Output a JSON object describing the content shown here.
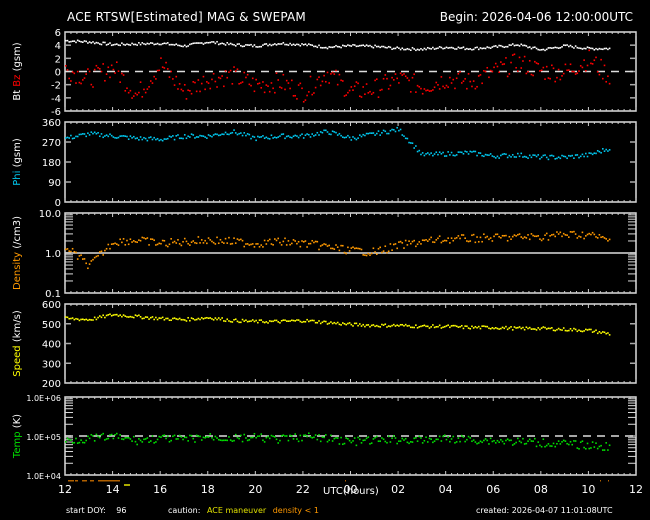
{
  "header": {
    "title": "ACE RTSW[Estimated] MAG & SWEPAM",
    "begin": "Begin: 2026-04-06 12:00:00UTC"
  },
  "footer": {
    "start_doy_label": "start DOY:",
    "start_doy_value": "96",
    "caution_label": "caution:",
    "caution_ace": "ACE maneuver",
    "caution_density": "density < 1",
    "created": "created: 2026-04-07 11:01:08UTC",
    "xlabel": "UTC(hours)"
  },
  "colors": {
    "bt": "#ffffff",
    "bz": "#ff0000",
    "phi": "#00c8f0",
    "density": "#ff9900",
    "speed": "#ffff00",
    "temp": "#00e000",
    "axis": "#ffffff",
    "ace_maneuver": "#cccc00",
    "density_lt1": "#ff9900"
  },
  "chart_data": [
    {
      "type": "scatter",
      "panel": "Bt/Bz",
      "ylabel": "Bt Bz (gsm)",
      "yticks": [
        "6",
        "4",
        "2",
        "0",
        "-2",
        "-4",
        "-6"
      ],
      "ylim": [
        -6,
        6
      ],
      "reference_line": 0,
      "series": [
        {
          "name": "Bt",
          "x": [
            12,
            13,
            14,
            15,
            16,
            17,
            18,
            19,
            20,
            21,
            22,
            23,
            24,
            25,
            26,
            27,
            28,
            29,
            30,
            31,
            32,
            33,
            34,
            35
          ],
          "values": [
            4.8,
            4.6,
            4.2,
            4.3,
            4.4,
            4.0,
            4.6,
            4.2,
            4.0,
            4.4,
            4.2,
            3.8,
            4.0,
            3.9,
            3.6,
            3.5,
            3.8,
            3.6,
            3.8,
            4.2,
            3.4,
            4.0,
            3.6,
            3.6
          ]
        },
        {
          "name": "Bz",
          "x": [
            12,
            13,
            14,
            15,
            16,
            17,
            18,
            19,
            20,
            21,
            22,
            23,
            24,
            25,
            26,
            27,
            28,
            29,
            30,
            31,
            32,
            33,
            34,
            35
          ],
          "values": [
            0.5,
            -1.0,
            0.8,
            -3.5,
            1.2,
            -3.0,
            -1.0,
            -0.5,
            -2.0,
            -1.5,
            -3.0,
            0.0,
            -3.0,
            -2.5,
            -1.0,
            -2.2,
            -1.0,
            -1.5,
            0.0,
            1.5,
            0.2,
            0.0,
            2.0,
            -1.0
          ]
        }
      ]
    },
    {
      "type": "scatter",
      "panel": "Phi",
      "ylabel": "Phi (gsm)",
      "yticks": [
        "360",
        "270",
        "180",
        "90",
        "0"
      ],
      "ylim": [
        0,
        360
      ],
      "series": [
        {
          "name": "Phi",
          "x": [
            12,
            13,
            14,
            15,
            16,
            17,
            18,
            19,
            20,
            21,
            22,
            23,
            24,
            25,
            26,
            27,
            28,
            29,
            30,
            31,
            32,
            33,
            34,
            35
          ],
          "values": [
            290,
            310,
            300,
            290,
            285,
            300,
            300,
            320,
            290,
            300,
            300,
            320,
            290,
            310,
            330,
            215,
            220,
            225,
            210,
            215,
            205,
            205,
            215,
            250
          ]
        }
      ]
    },
    {
      "type": "scatter",
      "panel": "Density",
      "ylabel": "Density (/cm3)",
      "yticks": [
        "10.0",
        "1.0",
        "0.1"
      ],
      "ylim": [
        0.1,
        10.0
      ],
      "scale": "log",
      "reference_line": 1.0,
      "series": [
        {
          "name": "Density",
          "x": [
            12,
            13,
            14,
            15,
            16,
            17,
            18,
            19,
            20,
            21,
            22,
            23,
            24,
            25,
            26,
            27,
            28,
            29,
            30,
            31,
            32,
            33,
            34,
            35
          ],
          "values": [
            1.5,
            0.5,
            2.0,
            2.2,
            1.8,
            2.0,
            2.2,
            2.0,
            1.8,
            2.0,
            1.8,
            1.5,
            1.2,
            1.1,
            1.6,
            2.0,
            2.3,
            2.4,
            2.5,
            2.6,
            2.7,
            3.0,
            3.0,
            2.0
          ]
        }
      ]
    },
    {
      "type": "scatter",
      "panel": "Speed",
      "ylabel": "Speed (km/s)",
      "yticks": [
        "600",
        "500",
        "400",
        "300",
        "200"
      ],
      "ylim": [
        200,
        600
      ],
      "series": [
        {
          "name": "Speed",
          "x": [
            12,
            13,
            14,
            15,
            16,
            17,
            18,
            19,
            20,
            21,
            22,
            23,
            24,
            25,
            26,
            27,
            28,
            29,
            30,
            31,
            32,
            33,
            34,
            35
          ],
          "values": [
            530,
            525,
            550,
            540,
            530,
            525,
            535,
            520,
            515,
            515,
            520,
            510,
            500,
            495,
            495,
            490,
            490,
            485,
            485,
            480,
            480,
            475,
            470,
            450
          ]
        }
      ]
    },
    {
      "type": "scatter",
      "panel": "Temp",
      "ylabel": "Temp (K)",
      "yticks": [
        "1.0E+06",
        "1.0E+05",
        "1.0E+04"
      ],
      "ylim": [
        10000,
        1000000
      ],
      "scale": "log",
      "reference_line": 100000,
      "series": [
        {
          "name": "Temp",
          "x": [
            12,
            13,
            14,
            15,
            16,
            17,
            18,
            19,
            20,
            21,
            22,
            23,
            24,
            25,
            26,
            27,
            28,
            29,
            30,
            31,
            32,
            33,
            34,
            35
          ],
          "values": [
            80000,
            90000,
            100000,
            80000,
            90000,
            85000,
            100000,
            90000,
            95000,
            85000,
            100000,
            90000,
            75000,
            80000,
            85000,
            80000,
            90000,
            85000,
            80000,
            75000,
            70000,
            65000,
            60000,
            55000
          ]
        }
      ]
    }
  ],
  "x_axis": {
    "ticks": [
      "12",
      "14",
      "16",
      "18",
      "20",
      "22",
      "00",
      "02",
      "04",
      "06",
      "08",
      "10",
      "12"
    ],
    "label": "UTC(hours)"
  }
}
